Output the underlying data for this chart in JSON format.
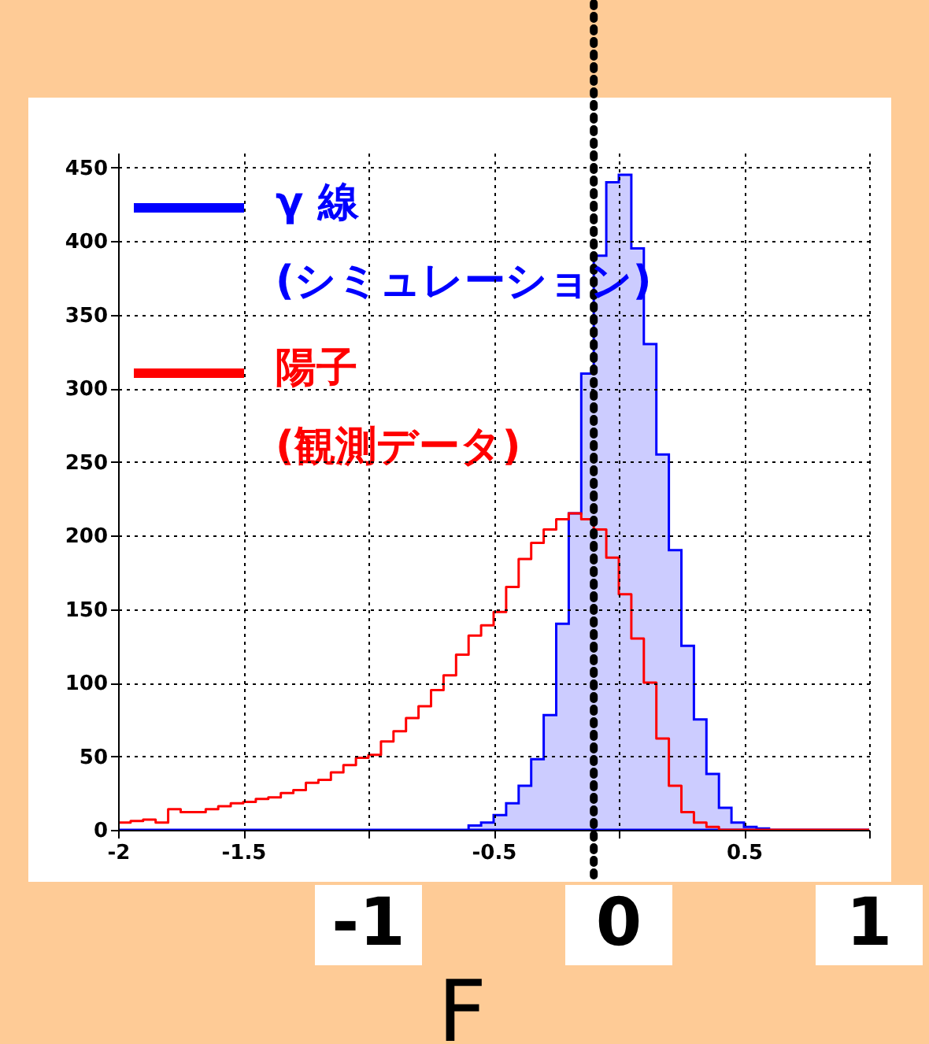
{
  "chart_data": {
    "type": "histogram",
    "xlabel": "F",
    "bins": [
      -2.0,
      -1.95,
      -1.9,
      -1.85,
      -1.8,
      -1.75,
      -1.7,
      -1.65,
      -1.6,
      -1.55,
      -1.5,
      -1.45,
      -1.4,
      -1.35,
      -1.3,
      -1.25,
      -1.2,
      -1.15,
      -1.1,
      -1.05,
      -1.0,
      -0.95,
      -0.9,
      -0.85,
      -0.8,
      -0.75,
      -0.7,
      -0.65,
      -0.6,
      -0.55,
      -0.5,
      -0.45,
      -0.4,
      -0.35,
      -0.3,
      -0.25,
      -0.2,
      -0.15,
      -0.1,
      -0.05,
      0.0,
      0.05,
      0.1,
      0.15,
      0.2,
      0.25,
      0.3,
      0.35,
      0.4,
      0.45,
      0.5,
      0.55,
      0.6,
      0.65,
      0.7,
      0.75,
      0.8,
      0.85,
      0.9,
      0.95,
      1.0
    ],
    "series": [
      {
        "name": "γ 線\n(シミュレーション)",
        "color": "#0000ff",
        "values": [
          0,
          0,
          0,
          0,
          0,
          0,
          0,
          0,
          0,
          0,
          0,
          0,
          0,
          0,
          0,
          0,
          0,
          0,
          0,
          0,
          0,
          0,
          0,
          0,
          0,
          0,
          0,
          0,
          3,
          5,
          10,
          18,
          30,
          48,
          78,
          140,
          215,
          310,
          390,
          440,
          445,
          395,
          330,
          255,
          190,
          125,
          75,
          38,
          15,
          5,
          2,
          1,
          0,
          0,
          0,
          0,
          0,
          0,
          0,
          0
        ]
      },
      {
        "name": "陽子\n(観測データ)",
        "color": "#ff0000",
        "values": [
          5,
          6,
          7,
          5,
          14,
          12,
          12,
          14,
          16,
          18,
          19,
          21,
          22,
          25,
          27,
          32,
          34,
          39,
          44,
          49,
          51,
          60,
          67,
          76,
          84,
          95,
          105,
          119,
          132,
          139,
          148,
          165,
          184,
          195,
          204,
          211,
          215,
          211,
          204,
          185,
          160,
          130,
          100,
          62,
          30,
          12,
          5,
          2,
          0,
          0,
          0,
          0,
          0,
          0,
          0,
          0,
          0,
          0,
          0,
          0
        ]
      }
    ],
    "xlim": [
      -2,
      1
    ],
    "xticks": [
      -2,
      -1.5,
      {
        "value": -1,
        "label": null
      },
      -0.5,
      {
        "value": 0,
        "label": null
      },
      0.5,
      {
        "value": 1,
        "label": null
      }
    ],
    "annotations": [
      "-1",
      "0",
      "1"
    ],
    "ylim": [
      0,
      460
    ],
    "yticks": [
      0,
      50,
      100,
      150,
      200,
      250,
      300,
      350,
      400,
      450
    ],
    "ref_lines": [
      {
        "axis": "x",
        "value": -0.1,
        "color": "#000000",
        "line_style": "dotted"
      }
    ],
    "grid": true,
    "legend": "top left"
  }
}
